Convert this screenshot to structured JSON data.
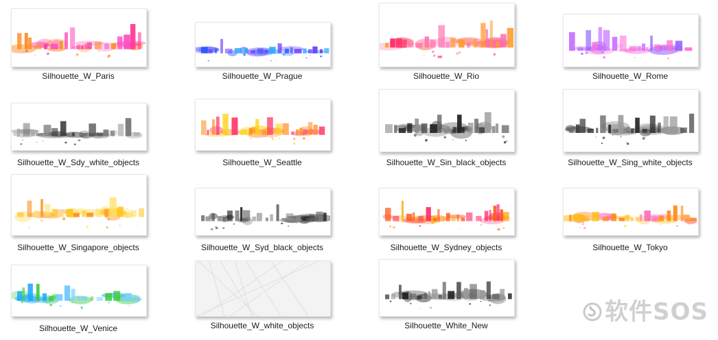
{
  "files": [
    {
      "name": "Silhouette_W_Paris",
      "palette": [
        "#ff3d9a",
        "#ff8a1f",
        "#ff4fc0"
      ]
    },
    {
      "name": "Silhouette_W_Prague",
      "palette": [
        "#1f4fff",
        "#2ea8ff",
        "#6a3cff"
      ]
    },
    {
      "name": "Silhouette_W_Rio",
      "palette": [
        "#ff2d6a",
        "#ff6fb0",
        "#ff9a2d"
      ]
    },
    {
      "name": "Silhouette_W_Rome",
      "palette": [
        "#c96bff",
        "#ff6fd8",
        "#8a5bff"
      ]
    },
    {
      "name": "Silhouette_W_Sdy_white_objects",
      "palette": [
        "#3a3a3a",
        "#777777",
        "#aaaaaa"
      ]
    },
    {
      "name": "Silhouette_W_Seattle",
      "palette": [
        "#ffd21a",
        "#ff8c1a",
        "#ff3d6a"
      ]
    },
    {
      "name": "Silhouette_W_Sin_black_objects",
      "palette": [
        "#1f1f1f",
        "#555555",
        "#8a8a8a"
      ]
    },
    {
      "name": "Silhouette_W_Sing_white_objects",
      "palette": [
        "#2a2a2a",
        "#666666",
        "#9a9a9a"
      ]
    },
    {
      "name": "Silhouette_W_Singapore_objects",
      "palette": [
        "#ffc61a",
        "#ff8c1a",
        "#ffe066"
      ]
    },
    {
      "name": "Silhouette_W_Syd_black_objects",
      "palette": [
        "#1a1a1a",
        "#4d4d4d",
        "#888888"
      ]
    },
    {
      "name": "Silhouette_W_Sydney_objects",
      "palette": [
        "#ff5a1a",
        "#ffb01a",
        "#ff2d6a"
      ]
    },
    {
      "name": "Silhouette_W_Tokyo",
      "palette": [
        "#ffbf1a",
        "#ff5ab0",
        "#ff8c1a"
      ]
    },
    {
      "name": "Silhouette_W_Venice",
      "palette": [
        "#1aa8ff",
        "#3acb3a",
        "#7ad0ff"
      ]
    },
    {
      "name": "Silhouette_W_white_objects",
      "palette": [
        "#e8e8e8",
        "#dcdcdc",
        "#f2f2f2"
      ],
      "paper": true
    },
    {
      "name": "Silhouette_White_New",
      "palette": [
        "#222222",
        "#555555",
        "#999999"
      ]
    }
  ],
  "watermark": {
    "text": "软件SOS",
    "icon": "s-logo-icon"
  }
}
